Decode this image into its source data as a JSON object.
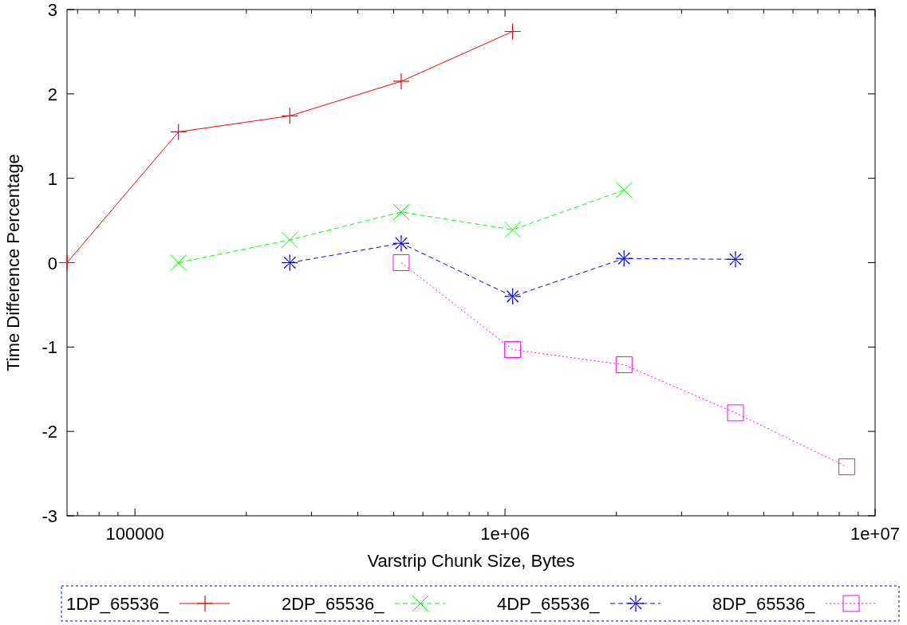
{
  "chart_data": {
    "type": "line",
    "xlabel": "Varstrip Chunk Size, Bytes",
    "ylabel": "Time Difference Percentage",
    "log": "x",
    "xlim": [
      65536,
      10000000
    ],
    "ylim": [
      -3,
      3
    ],
    "xticks": [
      {
        "value": 70000,
        "label": null
      },
      {
        "value": 80000,
        "label": null
      },
      {
        "value": 90000,
        "label": null
      },
      100000,
      {
        "value": 200000,
        "label": null
      },
      {
        "value": 300000,
        "label": null
      },
      {
        "value": 400000,
        "label": null
      },
      {
        "value": 500000,
        "label": null
      },
      {
        "value": 600000,
        "label": null
      },
      {
        "value": 700000,
        "label": null
      },
      {
        "value": 800000,
        "label": null
      },
      {
        "value": 900000,
        "label": null
      },
      {
        "value": 1000000,
        "label": "1e+06"
      },
      {
        "value": 2000000,
        "label": null
      },
      {
        "value": 3000000,
        "label": null
      },
      {
        "value": 4000000,
        "label": null
      },
      {
        "value": 5000000,
        "label": null
      },
      {
        "value": 6000000,
        "label": null
      },
      {
        "value": 7000000,
        "label": null
      },
      {
        "value": 8000000,
        "label": null
      },
      {
        "value": 9000000,
        "label": null
      },
      {
        "value": 10000000,
        "label": "1e+07"
      }
    ],
    "yticks": [
      -3,
      -2,
      -1,
      0,
      1,
      2,
      3
    ],
    "grid": false,
    "legend": "bottom",
    "series": [
      {
        "name": "1DP_65536_",
        "color": "#ff0000",
        "marker": "plus",
        "line_style": "solid",
        "x": [
          65536,
          131072,
          262144,
          524288,
          1048576
        ],
        "values": [
          0,
          1.55,
          1.74,
          2.15,
          2.74
        ]
      },
      {
        "name": "2DP_65536_",
        "color": "#00ff00",
        "marker": "cross",
        "line_style": "dashed",
        "x": [
          131072,
          262144,
          524288,
          1048576,
          2097152
        ],
        "values": [
          0,
          0.27,
          0.6,
          0.39,
          0.86
        ]
      },
      {
        "name": "4DP_65536_",
        "color": "#0000ff",
        "marker": "star",
        "line_style": "dashed",
        "x": [
          262144,
          524288,
          1048576,
          2097152,
          4194304
        ],
        "values": [
          0,
          0.23,
          -0.4,
          0.05,
          0.04
        ]
      },
      {
        "name": "8DP_65536_",
        "color": "#ff00ff",
        "marker": "square",
        "line_style": "dotted",
        "x": [
          524288,
          1048576,
          2097152,
          4194304,
          8388608
        ],
        "values": [
          0,
          -1.03,
          -1.21,
          -1.78,
          -2.42
        ]
      }
    ]
  }
}
